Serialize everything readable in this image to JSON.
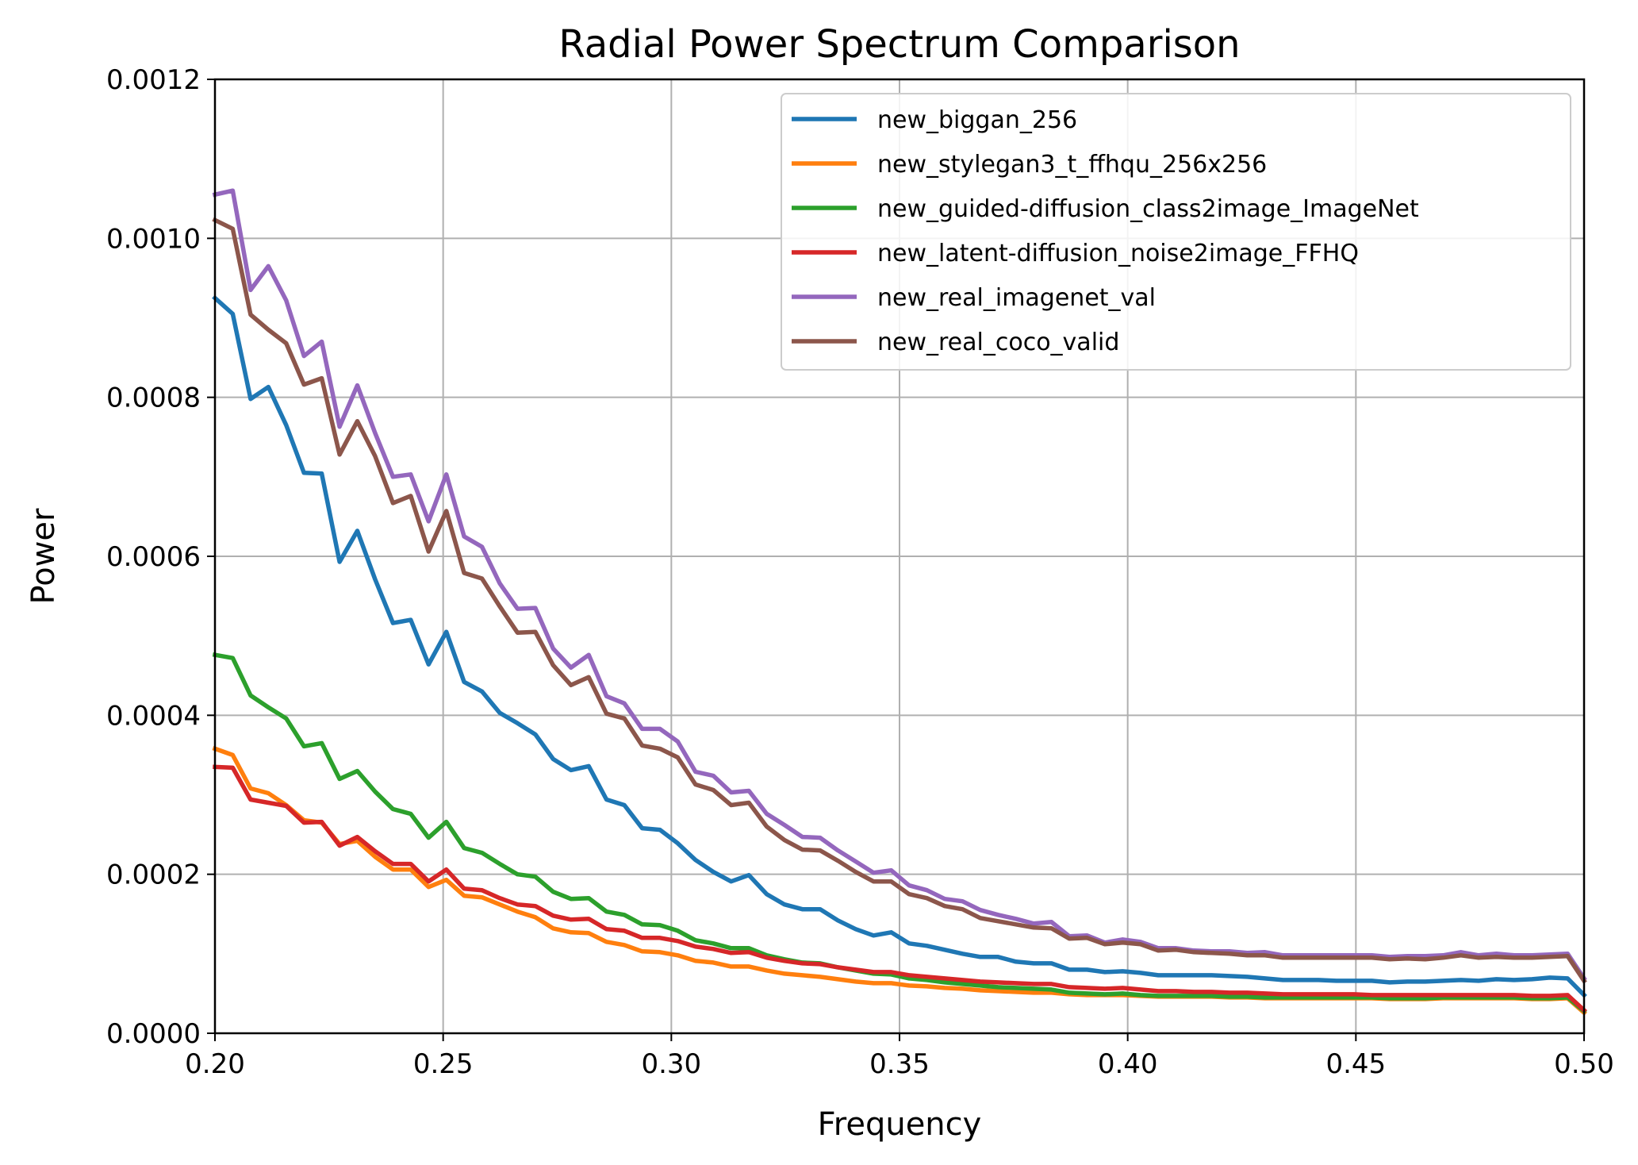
{
  "chart_data": {
    "type": "line",
    "title": "Radial Power Spectrum Comparison",
    "xlabel": "Frequency",
    "ylabel": "Power",
    "xlim": [
      0.2,
      0.5
    ],
    "ylim": [
      0.0,
      0.0012
    ],
    "xticks": [
      0.2,
      0.25,
      0.3,
      0.35,
      0.4,
      0.45,
      0.5
    ],
    "xtick_labels": [
      "0.20",
      "0.25",
      "0.30",
      "0.35",
      "0.40",
      "0.45",
      "0.50"
    ],
    "yticks": [
      0.0,
      0.0002,
      0.0004,
      0.0006,
      0.0008,
      0.001,
      0.0012
    ],
    "ytick_labels": [
      "0.0000",
      "0.0002",
      "0.0004",
      "0.0006",
      "0.0008",
      "0.0010",
      "0.0012"
    ],
    "grid": true,
    "legend_position": "upper-right",
    "x": [
      0.2,
      0.2039,
      0.2078,
      0.2117,
      0.2156,
      0.2195,
      0.2234,
      0.2273,
      0.2312,
      0.2351,
      0.239,
      0.2429,
      0.2468,
      0.2507,
      0.2546,
      0.2585,
      0.2624,
      0.2663,
      0.2702,
      0.2741,
      0.278,
      0.2819,
      0.2858,
      0.2897,
      0.2936,
      0.2975,
      0.3014,
      0.3053,
      0.3092,
      0.3131,
      0.317,
      0.3209,
      0.3248,
      0.3287,
      0.3326,
      0.3365,
      0.3404,
      0.3443,
      0.3482,
      0.3521,
      0.356,
      0.3599,
      0.3638,
      0.3677,
      0.3716,
      0.3755,
      0.3794,
      0.3833,
      0.3872,
      0.3911,
      0.395,
      0.3989,
      0.4028,
      0.4067,
      0.4106,
      0.4145,
      0.4184,
      0.4223,
      0.4262,
      0.4301,
      0.434,
      0.4379,
      0.4418,
      0.4457,
      0.4496,
      0.4535,
      0.4574,
      0.4613,
      0.4652,
      0.4691,
      0.473,
      0.4769,
      0.4808,
      0.4847,
      0.4886,
      0.4925,
      0.4964,
      0.5
    ],
    "series": [
      {
        "name": "new_biggan_256",
        "color": "#1f77b4",
        "values": [
          0.000925,
          0.000905,
          0.000798,
          0.000813,
          0.000765,
          0.000705,
          0.000704,
          0.000593,
          0.000632,
          0.000571,
          0.000516,
          0.00052,
          0.000464,
          0.000505,
          0.000442,
          0.00043,
          0.000403,
          0.00039,
          0.000376,
          0.000345,
          0.000331,
          0.000336,
          0.000294,
          0.000287,
          0.000258,
          0.000256,
          0.000239,
          0.000218,
          0.000203,
          0.000191,
          0.000199,
          0.000175,
          0.000162,
          0.000156,
          0.000156,
          0.000142,
          0.000131,
          0.000123,
          0.000127,
          0.000113,
          0.00011,
          0.000105,
          0.0001,
          9.6e-05,
          9.6e-05,
          9e-05,
          8.8e-05,
          8.8e-05,
          8e-05,
          8e-05,
          7.7e-05,
          7.8e-05,
          7.6e-05,
          7.3e-05,
          7.3e-05,
          7.3e-05,
          7.3e-05,
          7.2e-05,
          7.1e-05,
          6.9e-05,
          6.7e-05,
          6.7e-05,
          6.7e-05,
          6.6e-05,
          6.6e-05,
          6.6e-05,
          6.4e-05,
          6.5e-05,
          6.5e-05,
          6.6e-05,
          6.7e-05,
          6.6e-05,
          6.8e-05,
          6.7e-05,
          6.8e-05,
          7e-05,
          6.9e-05,
          4.8e-05
        ]
      },
      {
        "name": "new_stylegan3_t_ffhqu_256x256",
        "color": "#ff7f0e",
        "values": [
          0.000358,
          0.00035,
          0.000308,
          0.000302,
          0.000287,
          0.000268,
          0.000265,
          0.000238,
          0.000242,
          0.000222,
          0.000206,
          0.000206,
          0.000184,
          0.000193,
          0.000173,
          0.000171,
          0.000162,
          0.000153,
          0.000146,
          0.000132,
          0.000127,
          0.000126,
          0.000115,
          0.000111,
          0.000103,
          0.000102,
          9.8e-05,
          9.1e-05,
          8.9e-05,
          8.4e-05,
          8.4e-05,
          7.9e-05,
          7.5e-05,
          7.3e-05,
          7.1e-05,
          6.8e-05,
          6.5e-05,
          6.3e-05,
          6.3e-05,
          6e-05,
          5.9e-05,
          5.7e-05,
          5.6e-05,
          5.4e-05,
          5.3e-05,
          5.2e-05,
          5.1e-05,
          5.1e-05,
          4.9e-05,
          4.8e-05,
          4.8e-05,
          4.8e-05,
          4.7e-05,
          4.6e-05,
          4.6e-05,
          4.6e-05,
          4.6e-05,
          4.5e-05,
          4.5e-05,
          4.4e-05,
          4.4e-05,
          4.4e-05,
          4.4e-05,
          4.4e-05,
          4.4e-05,
          4.4e-05,
          4.3e-05,
          4.3e-05,
          4.3e-05,
          4.4e-05,
          4.4e-05,
          4.4e-05,
          4.4e-05,
          4.4e-05,
          4.3e-05,
          4.3e-05,
          4.4e-05,
          2.6e-05
        ]
      },
      {
        "name": "new_guided-diffusion_class2image_ImageNet",
        "color": "#2ca02c",
        "values": [
          0.000476,
          0.000472,
          0.000425,
          0.00041,
          0.000396,
          0.000361,
          0.000365,
          0.00032,
          0.00033,
          0.000304,
          0.000282,
          0.000276,
          0.000246,
          0.000266,
          0.000233,
          0.000227,
          0.000213,
          0.0002,
          0.000197,
          0.000178,
          0.000169,
          0.00017,
          0.000153,
          0.000149,
          0.000137,
          0.000136,
          0.000129,
          0.000117,
          0.000113,
          0.000107,
          0.000107,
          9.8e-05,
          9.3e-05,
          8.9e-05,
          8.8e-05,
          8.3e-05,
          7.9e-05,
          7.5e-05,
          7.4e-05,
          6.9e-05,
          6.7e-05,
          6.4e-05,
          6.2e-05,
          6e-05,
          5.8e-05,
          5.7e-05,
          5.6e-05,
          5.5e-05,
          5.1e-05,
          5e-05,
          4.9e-05,
          5e-05,
          4.8e-05,
          4.7e-05,
          4.7e-05,
          4.7e-05,
          4.7e-05,
          4.6e-05,
          4.6e-05,
          4.5e-05,
          4.5e-05,
          4.5e-05,
          4.5e-05,
          4.5e-05,
          4.5e-05,
          4.5e-05,
          4.4e-05,
          4.4e-05,
          4.4e-05,
          4.5e-05,
          4.5e-05,
          4.5e-05,
          4.5e-05,
          4.5e-05,
          4.4e-05,
          4.4e-05,
          4.5e-05,
          2.8e-05
        ]
      },
      {
        "name": "new_latent-diffusion_noise2image_FFHQ",
        "color": "#d62728",
        "values": [
          0.000335,
          0.000334,
          0.000294,
          0.00029,
          0.000286,
          0.000265,
          0.000266,
          0.000236,
          0.000247,
          0.000229,
          0.000213,
          0.000213,
          0.000191,
          0.000206,
          0.000182,
          0.00018,
          0.00017,
          0.000162,
          0.00016,
          0.000148,
          0.000143,
          0.000144,
          0.000131,
          0.000129,
          0.00012,
          0.00012,
          0.000116,
          0.000109,
          0.000106,
          0.000101,
          0.000102,
          9.5e-05,
          9.1e-05,
          8.8e-05,
          8.7e-05,
          8.3e-05,
          8e-05,
          7.7e-05,
          7.7e-05,
          7.3e-05,
          7.1e-05,
          6.9e-05,
          6.7e-05,
          6.5e-05,
          6.4e-05,
          6.3e-05,
          6.2e-05,
          6.2e-05,
          5.8e-05,
          5.7e-05,
          5.6e-05,
          5.7e-05,
          5.5e-05,
          5.3e-05,
          5.3e-05,
          5.2e-05,
          5.2e-05,
          5.1e-05,
          5.1e-05,
          5e-05,
          4.9e-05,
          4.9e-05,
          4.9e-05,
          4.9e-05,
          4.9e-05,
          4.8e-05,
          4.8e-05,
          4.8e-05,
          4.8e-05,
          4.8e-05,
          4.8e-05,
          4.8e-05,
          4.8e-05,
          4.8e-05,
          4.7e-05,
          4.7e-05,
          4.8e-05,
          2.9e-05
        ]
      },
      {
        "name": "new_real_imagenet_val",
        "color": "#9467bd",
        "values": [
          0.001055,
          0.00106,
          0.000935,
          0.000965,
          0.000922,
          0.000852,
          0.00087,
          0.000763,
          0.000815,
          0.000755,
          0.0007,
          0.000703,
          0.000644,
          0.000703,
          0.000625,
          0.000612,
          0.000566,
          0.000534,
          0.000535,
          0.000484,
          0.00046,
          0.000476,
          0.000424,
          0.000415,
          0.000383,
          0.000383,
          0.000367,
          0.000329,
          0.000324,
          0.000303,
          0.000305,
          0.000276,
          0.000262,
          0.000247,
          0.000246,
          0.00023,
          0.000216,
          0.000202,
          0.000205,
          0.000186,
          0.00018,
          0.000169,
          0.000166,
          0.000155,
          0.000149,
          0.000144,
          0.000138,
          0.00014,
          0.000122,
          0.000123,
          0.000114,
          0.000118,
          0.000115,
          0.000107,
          0.000107,
          0.000104,
          0.000103,
          0.000103,
          0.000101,
          0.000102,
          9.8e-05,
          9.8e-05,
          9.8e-05,
          9.8e-05,
          9.8e-05,
          9.8e-05,
          9.6e-05,
          9.7e-05,
          9.7e-05,
          9.8e-05,
          0.000102,
          9.8e-05,
          0.0001,
          9.8e-05,
          9.8e-05,
          9.9e-05,
          0.0001,
          6.9e-05
        ]
      },
      {
        "name": "new_real_coco_valid",
        "color": "#8c564b",
        "values": [
          0.001023,
          0.001012,
          0.000904,
          0.000885,
          0.000868,
          0.000816,
          0.000824,
          0.000728,
          0.00077,
          0.000726,
          0.000667,
          0.000676,
          0.000606,
          0.000657,
          0.000579,
          0.000572,
          0.000537,
          0.000504,
          0.000505,
          0.000463,
          0.000438,
          0.000448,
          0.000402,
          0.000396,
          0.000362,
          0.000358,
          0.000347,
          0.000313,
          0.000306,
          0.000287,
          0.00029,
          0.00026,
          0.000243,
          0.000231,
          0.00023,
          0.000217,
          0.000203,
          0.000191,
          0.000191,
          0.000175,
          0.00017,
          0.00016,
          0.000156,
          0.000145,
          0.000141,
          0.000137,
          0.000133,
          0.000132,
          0.000119,
          0.00012,
          0.000112,
          0.000114,
          0.000112,
          0.000104,
          0.000105,
          0.000102,
          0.000101,
          0.0001,
          9.8e-05,
          9.8e-05,
          9.5e-05,
          9.5e-05,
          9.5e-05,
          9.5e-05,
          9.5e-05,
          9.5e-05,
          9.3e-05,
          9.4e-05,
          9.3e-05,
          9.5e-05,
          9.8e-05,
          9.5e-05,
          9.6e-05,
          9.5e-05,
          9.5e-05,
          9.6e-05,
          9.7e-05,
          6.6e-05
        ]
      }
    ]
  }
}
